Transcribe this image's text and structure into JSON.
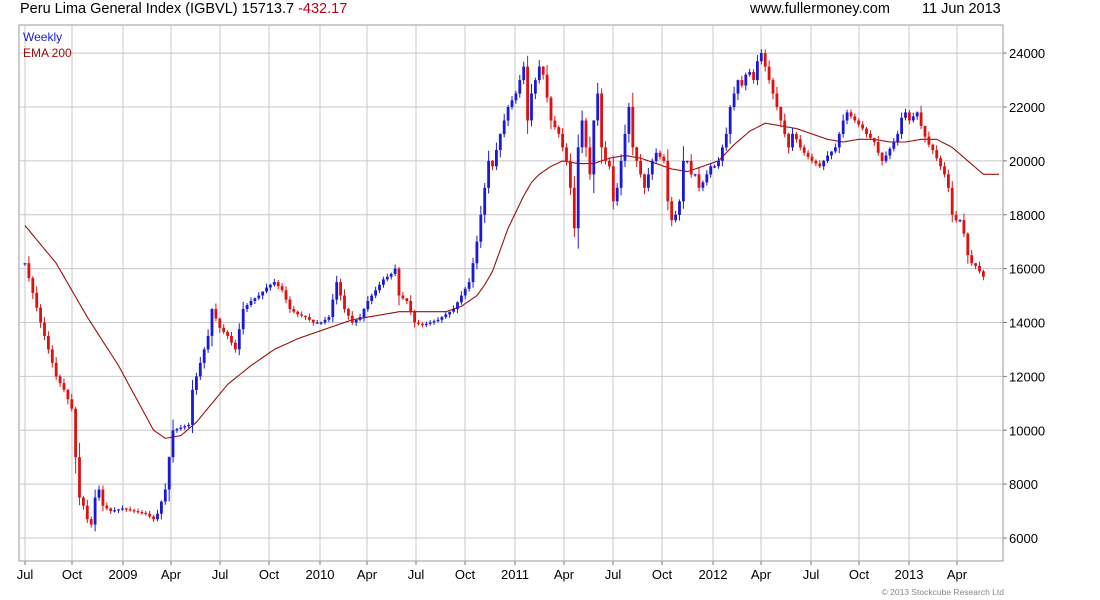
{
  "header": {
    "title": "Peru Lima General Index (IGBVL) 15713.7",
    "change": "-432.17",
    "site": "www.fullermoney.com",
    "date": "11 Jun 2013"
  },
  "legend": {
    "weekly": "Weekly",
    "ema": "EMA 200"
  },
  "copyright": "© 2013 Stockcube Research Ltd",
  "colors": {
    "up": "#1a1ad6",
    "down": "#e01010",
    "ema": "#9a1010",
    "grid": "#c8c8c8"
  },
  "chart_data": {
    "type": "line",
    "title": "Peru Lima General Index (IGBVL)",
    "xlabel": "",
    "ylabel": "",
    "ylim": [
      5200,
      25000
    ],
    "x_ticks": [
      "Jul",
      "Oct",
      "2009",
      "Apr",
      "Jul",
      "Oct",
      "2010",
      "Apr",
      "Jul",
      "Oct",
      "2011",
      "Apr",
      "Jul",
      "Oct",
      "2012",
      "Apr",
      "Jul",
      "Oct",
      "2013",
      "Apr"
    ],
    "y_ticks": [
      6000,
      8000,
      10000,
      12000,
      14000,
      16000,
      18000,
      20000,
      22000,
      24000
    ],
    "week_range": [
      0,
      250
    ],
    "series": [
      {
        "name": "Weekly",
        "style": "bars",
        "anchors": [
          [
            0,
            16200
          ],
          [
            2,
            15100
          ],
          [
            4,
            14000
          ],
          [
            6,
            13000
          ],
          [
            8,
            12000
          ],
          [
            10,
            11500
          ],
          [
            12,
            10800
          ],
          [
            13,
            9000
          ],
          [
            14,
            7500
          ],
          [
            15,
            7200
          ],
          [
            16,
            6700
          ],
          [
            17,
            6500
          ],
          [
            18,
            7500
          ],
          [
            19,
            7800
          ],
          [
            20,
            7200
          ],
          [
            22,
            7000
          ],
          [
            25,
            7100
          ],
          [
            28,
            7000
          ],
          [
            31,
            6900
          ],
          [
            33,
            6700
          ],
          [
            34,
            6900
          ],
          [
            36,
            7800
          ],
          [
            37,
            9000
          ],
          [
            38,
            10000
          ],
          [
            40,
            10100
          ],
          [
            42,
            10200
          ],
          [
            43,
            11500
          ],
          [
            45,
            12500
          ],
          [
            47,
            13500
          ],
          [
            48,
            14500
          ],
          [
            50,
            13800
          ],
          [
            52,
            13500
          ],
          [
            54,
            13000
          ],
          [
            56,
            14500
          ],
          [
            58,
            14800
          ],
          [
            60,
            15000
          ],
          [
            62,
            15300
          ],
          [
            64,
            15500
          ],
          [
            66,
            15200
          ],
          [
            68,
            14500
          ],
          [
            70,
            14300
          ],
          [
            72,
            14200
          ],
          [
            74,
            14000
          ],
          [
            76,
            14000
          ],
          [
            78,
            14200
          ],
          [
            80,
            15500
          ],
          [
            82,
            14500
          ],
          [
            84,
            14000
          ],
          [
            86,
            14200
          ],
          [
            88,
            14800
          ],
          [
            90,
            15200
          ],
          [
            92,
            15600
          ],
          [
            94,
            15800
          ],
          [
            95,
            16000
          ],
          [
            96,
            15000
          ],
          [
            98,
            14800
          ],
          [
            100,
            14000
          ],
          [
            102,
            13900
          ],
          [
            104,
            14000
          ],
          [
            106,
            14100
          ],
          [
            108,
            14300
          ],
          [
            110,
            14500
          ],
          [
            112,
            15000
          ],
          [
            114,
            15500
          ],
          [
            115,
            16200
          ],
          [
            116,
            17000
          ],
          [
            117,
            18000
          ],
          [
            118,
            19000
          ],
          [
            119,
            20000
          ],
          [
            120,
            19800
          ],
          [
            122,
            21000
          ],
          [
            124,
            22000
          ],
          [
            126,
            22500
          ],
          [
            127,
            23000
          ],
          [
            128,
            23500
          ],
          [
            129,
            21500
          ],
          [
            130,
            22500
          ],
          [
            131,
            23000
          ],
          [
            132,
            23500
          ],
          [
            133,
            23200
          ],
          [
            135,
            21500
          ],
          [
            137,
            21000
          ],
          [
            138,
            20500
          ],
          [
            139,
            20000
          ],
          [
            140,
            19000
          ],
          [
            141,
            17500
          ],
          [
            142,
            20500
          ],
          [
            143,
            21500
          ],
          [
            144,
            20500
          ],
          [
            145,
            19500
          ],
          [
            146,
            21500
          ],
          [
            147,
            22500
          ],
          [
            148,
            20500
          ],
          [
            149,
            20000
          ],
          [
            150,
            19800
          ],
          [
            151,
            18500
          ],
          [
            152,
            19000
          ],
          [
            153,
            20000
          ],
          [
            154,
            21000
          ],
          [
            155,
            22000
          ],
          [
            156,
            20500
          ],
          [
            157,
            20000
          ],
          [
            158,
            19500
          ],
          [
            159,
            19000
          ],
          [
            161,
            20000
          ],
          [
            162,
            20300
          ],
          [
            164,
            20000
          ],
          [
            165,
            18500
          ],
          [
            166,
            17800
          ],
          [
            167,
            18000
          ],
          [
            168,
            18500
          ],
          [
            169,
            20000
          ],
          [
            170,
            20000
          ],
          [
            171,
            19500
          ],
          [
            172,
            19500
          ],
          [
            173,
            19000
          ],
          [
            174,
            19200
          ],
          [
            175,
            19500
          ],
          [
            176,
            19800
          ],
          [
            177,
            19800
          ],
          [
            178,
            20000
          ],
          [
            179,
            20500
          ],
          [
            180,
            21000
          ],
          [
            181,
            22000
          ],
          [
            182,
            22500
          ],
          [
            183,
            23000
          ],
          [
            184,
            22800
          ],
          [
            185,
            23200
          ],
          [
            186,
            23300
          ],
          [
            187,
            23000
          ],
          [
            188,
            23700
          ],
          [
            189,
            24000
          ],
          [
            190,
            23500
          ],
          [
            191,
            23000
          ],
          [
            192,
            22500
          ],
          [
            193,
            22000
          ],
          [
            194,
            21500
          ],
          [
            195,
            21000
          ],
          [
            196,
            20500
          ],
          [
            197,
            21000
          ],
          [
            198,
            20800
          ],
          [
            199,
            20500
          ],
          [
            200,
            20300
          ],
          [
            202,
            20000
          ],
          [
            204,
            19800
          ],
          [
            206,
            20200
          ],
          [
            208,
            20500
          ],
          [
            210,
            21500
          ],
          [
            211,
            21800
          ],
          [
            213,
            21500
          ],
          [
            215,
            21200
          ],
          [
            216,
            21000
          ],
          [
            218,
            20700
          ],
          [
            219,
            20300
          ],
          [
            220,
            20000
          ],
          [
            221,
            20200
          ],
          [
            223,
            20700
          ],
          [
            224,
            21000
          ],
          [
            225,
            21600
          ],
          [
            226,
            21800
          ],
          [
            227,
            21500
          ],
          [
            229,
            21800
          ],
          [
            230,
            21300
          ],
          [
            231,
            20900
          ],
          [
            232,
            20600
          ],
          [
            233,
            20400
          ],
          [
            234,
            20100
          ],
          [
            235,
            19800
          ],
          [
            236,
            19500
          ],
          [
            237,
            19000
          ],
          [
            238,
            18000
          ],
          [
            239,
            17800
          ],
          [
            240,
            17800
          ],
          [
            241,
            17300
          ],
          [
            242,
            16500
          ],
          [
            243,
            16200
          ],
          [
            244,
            16100
          ],
          [
            245,
            15900
          ],
          [
            246,
            15700
          ]
        ]
      },
      {
        "name": "EMA 200",
        "style": "line",
        "anchors": [
          [
            0,
            17600
          ],
          [
            8,
            16200
          ],
          [
            16,
            14200
          ],
          [
            24,
            12400
          ],
          [
            30,
            10800
          ],
          [
            33,
            10000
          ],
          [
            36,
            9700
          ],
          [
            40,
            9800
          ],
          [
            44,
            10300
          ],
          [
            48,
            11000
          ],
          [
            52,
            11700
          ],
          [
            58,
            12400
          ],
          [
            64,
            13000
          ],
          [
            70,
            13400
          ],
          [
            76,
            13700
          ],
          [
            80,
            13900
          ],
          [
            84,
            14100
          ],
          [
            88,
            14200
          ],
          [
            92,
            14300
          ],
          [
            96,
            14400
          ],
          [
            100,
            14400
          ],
          [
            104,
            14400
          ],
          [
            108,
            14400
          ],
          [
            112,
            14600
          ],
          [
            116,
            15000
          ],
          [
            118,
            15400
          ],
          [
            120,
            15900
          ],
          [
            122,
            16700
          ],
          [
            124,
            17500
          ],
          [
            126,
            18100
          ],
          [
            128,
            18700
          ],
          [
            130,
            19200
          ],
          [
            132,
            19500
          ],
          [
            135,
            19800
          ],
          [
            138,
            20000
          ],
          [
            142,
            19900
          ],
          [
            146,
            19900
          ],
          [
            150,
            20100
          ],
          [
            154,
            20200
          ],
          [
            158,
            20100
          ],
          [
            162,
            19900
          ],
          [
            166,
            19700
          ],
          [
            170,
            19600
          ],
          [
            174,
            19800
          ],
          [
            178,
            20000
          ],
          [
            182,
            20600
          ],
          [
            186,
            21100
          ],
          [
            190,
            21400
          ],
          [
            194,
            21300
          ],
          [
            198,
            21200
          ],
          [
            202,
            21000
          ],
          [
            206,
            20800
          ],
          [
            210,
            20700
          ],
          [
            214,
            20800
          ],
          [
            218,
            20800
          ],
          [
            222,
            20700
          ],
          [
            226,
            20700
          ],
          [
            230,
            20800
          ],
          [
            234,
            20800
          ],
          [
            238,
            20500
          ],
          [
            242,
            20000
          ],
          [
            246,
            19500
          ]
        ]
      }
    ]
  }
}
